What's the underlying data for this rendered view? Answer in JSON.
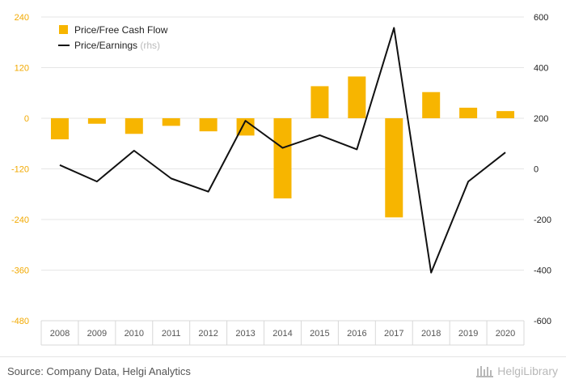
{
  "chart_data": {
    "type": "bar+line",
    "categories": [
      "2008",
      "2009",
      "2010",
      "2011",
      "2012",
      "2013",
      "2014",
      "2015",
      "2016",
      "2017",
      "2018",
      "2019",
      "2020"
    ],
    "series": [
      {
        "name": "Price/Free Cash Flow",
        "type": "bar",
        "axis": "left",
        "color": "#f7b500",
        "values": [
          -50,
          -13,
          -37,
          -18,
          -31,
          -41,
          -190,
          76,
          99,
          -235,
          62,
          25,
          17
        ]
      },
      {
        "name": "Price/Earnings",
        "legend_note": "(rhs)",
        "type": "line",
        "axis": "right",
        "color": "#111111",
        "values": [
          15,
          -50,
          72,
          -38,
          -90,
          190,
          83,
          133,
          77,
          557,
          -410,
          -50,
          65
        ]
      }
    ],
    "y_left": {
      "ticks": [
        240,
        120,
        0,
        -120,
        -240,
        -360,
        -480
      ],
      "ylim": [
        -480,
        240
      ],
      "color": "#f2a900"
    },
    "y_right": {
      "ticks": [
        600,
        400,
        200,
        0,
        -200,
        -400,
        -600
      ],
      "ylim": [
        -600,
        600
      ]
    },
    "grid": true,
    "legend_position": "top-left"
  },
  "footer": {
    "source": "Source: Company Data, Helgi Analytics",
    "logo_text": "HelgiLibrary"
  }
}
